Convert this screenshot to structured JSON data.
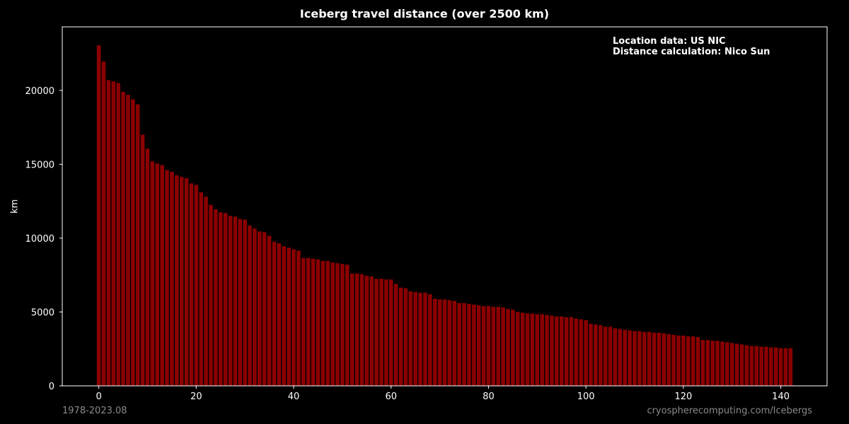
{
  "chart_data": {
    "type": "bar",
    "title": "Iceberg travel distance (over 2500 km)",
    "ylabel": "km",
    "xlabel": "",
    "xlim": [
      -7.5,
      149.5
    ],
    "ylim": [
      0,
      24300
    ],
    "xticks": [
      0,
      20,
      40,
      60,
      80,
      100,
      120,
      140
    ],
    "yticks": [
      0,
      5000,
      10000,
      15000,
      20000
    ],
    "bar_color": "#8b0000",
    "background": "#000000",
    "grid": false,
    "annotation_lines": [
      "Location data: US NIC",
      "Distance calculation: Nico Sun"
    ],
    "annotation_position": "top-right",
    "x": [
      0,
      1,
      2,
      3,
      4,
      5,
      6,
      7,
      8,
      9,
      10,
      11,
      12,
      13,
      14,
      15,
      16,
      17,
      18,
      19,
      20,
      21,
      22,
      23,
      24,
      25,
      26,
      27,
      28,
      29,
      30,
      31,
      32,
      33,
      34,
      35,
      36,
      37,
      38,
      39,
      40,
      41,
      42,
      43,
      44,
      45,
      46,
      47,
      48,
      49,
      50,
      51,
      52,
      53,
      54,
      55,
      56,
      57,
      58,
      59,
      60,
      61,
      62,
      63,
      64,
      65,
      66,
      67,
      68,
      69,
      70,
      71,
      72,
      73,
      74,
      75,
      76,
      77,
      78,
      79,
      80,
      81,
      82,
      83,
      84,
      85,
      86,
      87,
      88,
      89,
      90,
      91,
      92,
      93,
      94,
      95,
      96,
      97,
      98,
      99,
      100,
      101,
      102,
      103,
      104,
      105,
      106,
      107,
      108,
      109,
      110,
      111,
      112,
      113,
      114,
      115,
      116,
      117,
      118,
      119,
      120,
      121,
      122,
      123,
      124,
      125,
      126,
      127,
      128,
      129,
      130,
      131,
      132,
      133,
      134,
      135,
      136,
      137,
      138,
      139,
      140,
      141,
      142
    ],
    "values": [
      23050,
      21950,
      20700,
      20600,
      20500,
      19900,
      19700,
      19400,
      19050,
      17000,
      16050,
      15200,
      15050,
      14950,
      14600,
      14500,
      14250,
      14150,
      14050,
      13700,
      13600,
      13100,
      12800,
      12250,
      11950,
      11750,
      11700,
      11500,
      11450,
      11300,
      11250,
      10850,
      10650,
      10450,
      10400,
      10150,
      9750,
      9650,
      9450,
      9350,
      9250,
      9150,
      8650,
      8650,
      8600,
      8550,
      8450,
      8450,
      8350,
      8300,
      8250,
      8200,
      7600,
      7600,
      7550,
      7450,
      7400,
      7250,
      7250,
      7200,
      7200,
      6900,
      6650,
      6600,
      6400,
      6350,
      6300,
      6300,
      6200,
      5900,
      5850,
      5850,
      5800,
      5750,
      5600,
      5600,
      5550,
      5500,
      5450,
      5400,
      5400,
      5350,
      5350,
      5300,
      5200,
      5150,
      5000,
      4950,
      4900,
      4900,
      4850,
      4850,
      4800,
      4750,
      4700,
      4700,
      4650,
      4650,
      4550,
      4500,
      4450,
      4200,
      4150,
      4100,
      4000,
      4000,
      3900,
      3850,
      3800,
      3750,
      3700,
      3700,
      3650,
      3650,
      3600,
      3600,
      3550,
      3500,
      3450,
      3400,
      3400,
      3350,
      3350,
      3300,
      3100,
      3100,
      3050,
      3050,
      3000,
      2950,
      2900,
      2850,
      2800,
      2750,
      2700,
      2700,
      2650,
      2650,
      2600,
      2600,
      2550,
      2550,
      2550
    ]
  },
  "footer": {
    "left": "1978-2023.08",
    "right": "cryospherecomputing.com/Icebergs"
  }
}
